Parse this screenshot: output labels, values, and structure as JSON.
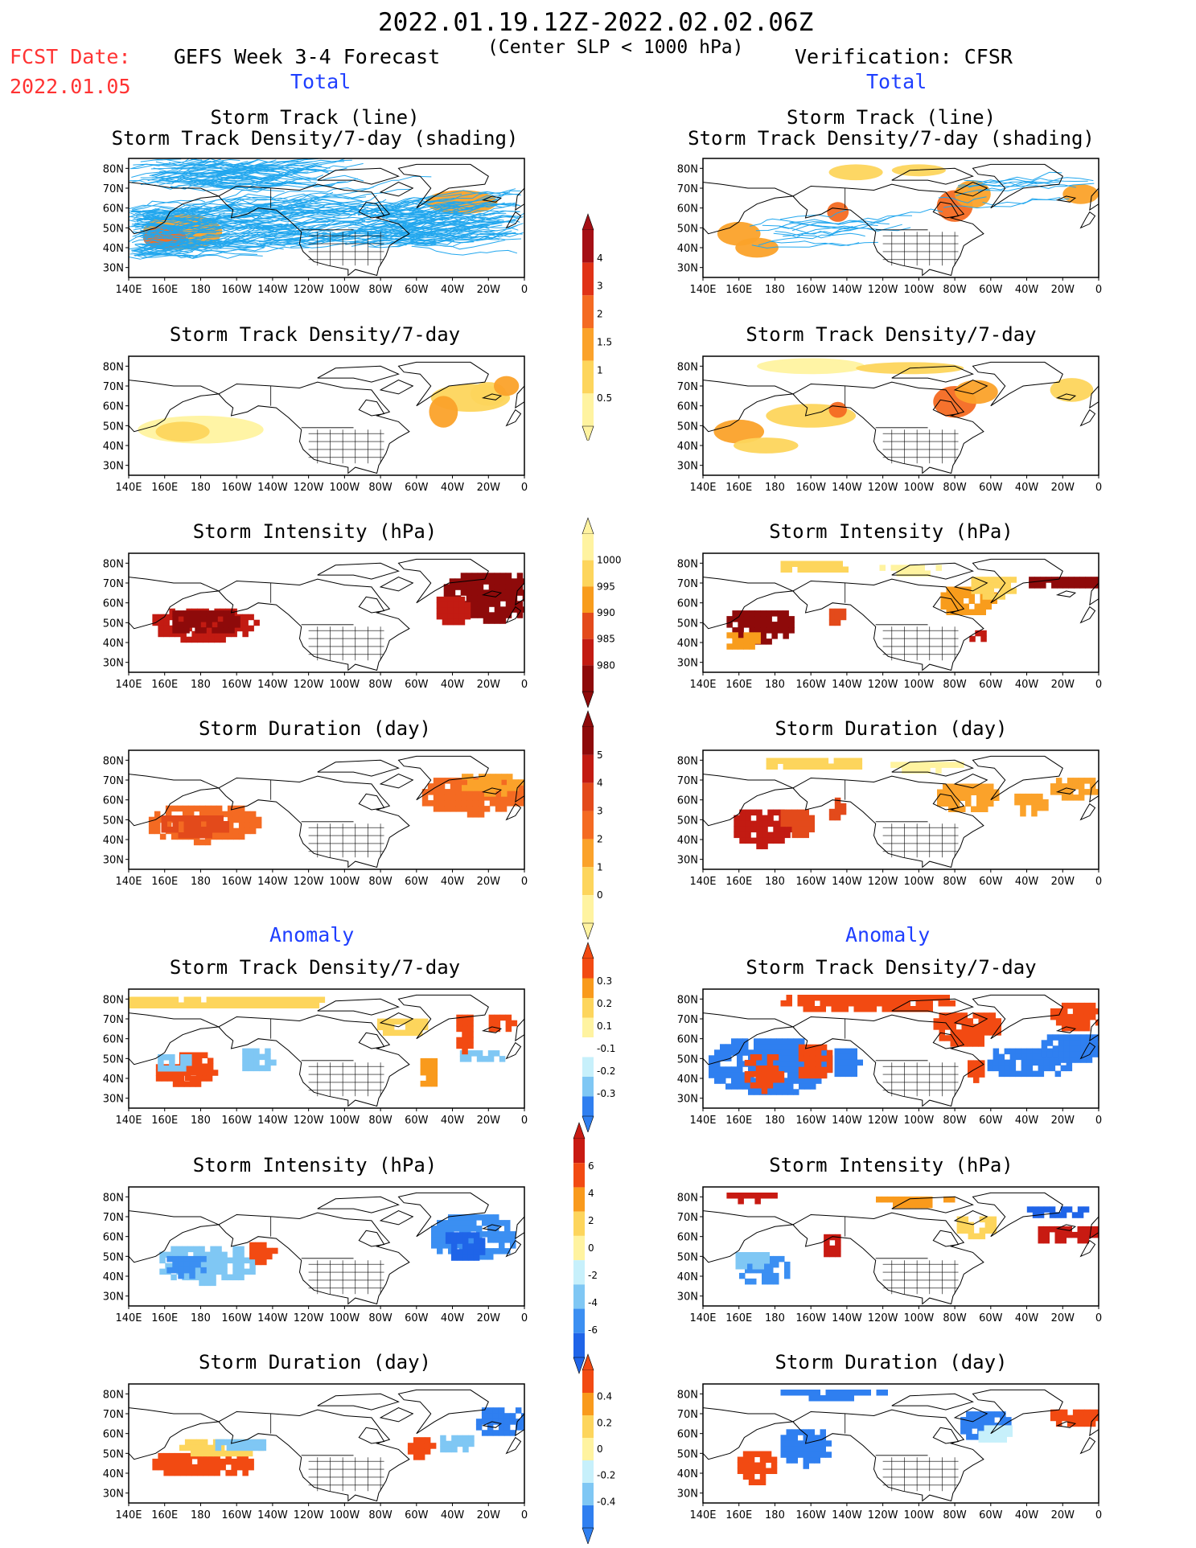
{
  "header": {
    "date_range": "2022.01.19.12Z-2022.02.02.06Z",
    "fcst_label": "FCST Date:",
    "fcst_date": "2022.01.05",
    "left_model": "GEFS Week 3-4 Forecast",
    "criterion": "(Center SLP < 1000 hPa)",
    "right_model": "Verification: CFSR",
    "section_total": "Total",
    "section_anomaly": "Anomaly"
  },
  "colors": {
    "header_red": "#ff3333",
    "section_blue": "#1f3fff",
    "track_line": "#22a7ee",
    "land_outline": "#000000"
  },
  "panel_titles": {
    "track_line": "Storm Track (line)",
    "track_density_shading": "Storm Track Density/7-day (shading)",
    "track_density": "Storm Track Density/7-day",
    "intensity": "Storm Intensity (hPa)",
    "duration": "Storm Duration (day)"
  },
  "axes": {
    "lon_ticks": [
      "140E",
      "160E",
      "180",
      "160W",
      "140W",
      "120W",
      "100W",
      "80W",
      "60W",
      "40W",
      "20W",
      "0"
    ],
    "lat_ticks": [
      "80N",
      "70N",
      "60N",
      "50N",
      "40N",
      "30N"
    ]
  },
  "colorbars": {
    "density_total": {
      "labels": [
        "4",
        "3",
        "2",
        "1.5",
        "1",
        "0.5"
      ],
      "colors": [
        "#a50f15",
        "#e03216",
        "#f46a22",
        "#fba22a",
        "#fdd55c",
        "#fff3a0"
      ]
    },
    "intensity_total": {
      "labels": [
        "1000",
        "995",
        "990",
        "985",
        "980"
      ],
      "colors": [
        "#fff3a0",
        "#fdd55c",
        "#f89c1c",
        "#e34a1b",
        "#c21b12",
        "#8e0a0a"
      ]
    },
    "duration_total": {
      "labels": [
        "5",
        "4",
        "3",
        "2",
        "1",
        "0"
      ],
      "colors": [
        "#8e0a0a",
        "#c21b12",
        "#e34a1b",
        "#f46a22",
        "#fba22a",
        "#fdd55c",
        "#fff3a0"
      ]
    },
    "density_anom": {
      "labels": [
        "0.3",
        "0.2",
        "0.1",
        "-0.1",
        "-0.2",
        "-0.3"
      ],
      "colors": [
        "#f24a12",
        "#f99a1c",
        "#fdd55c",
        "#fff3a0",
        "#ffffff",
        "#c7f0fb",
        "#7fc7f4",
        "#2f7ff0"
      ]
    },
    "intensity_anom": {
      "labels": [
        "6",
        "4",
        "2",
        "0",
        "-2",
        "-4",
        "-6"
      ],
      "colors": [
        "#c81a12",
        "#f24a12",
        "#f99a1c",
        "#fdd55c",
        "#fff3a0",
        "#c7f0fb",
        "#7fc7f4",
        "#3b8ff2",
        "#1f64e8"
      ]
    },
    "duration_anom": {
      "labels": [
        "0.4",
        "0.2",
        "0",
        "-0.2",
        "-0.4"
      ],
      "colors": [
        "#f24a12",
        "#f99a1c",
        "#fdd55c",
        "#fff3a0",
        "#c7f0fb",
        "#7fc7f4",
        "#2f7ff0"
      ]
    }
  }
}
